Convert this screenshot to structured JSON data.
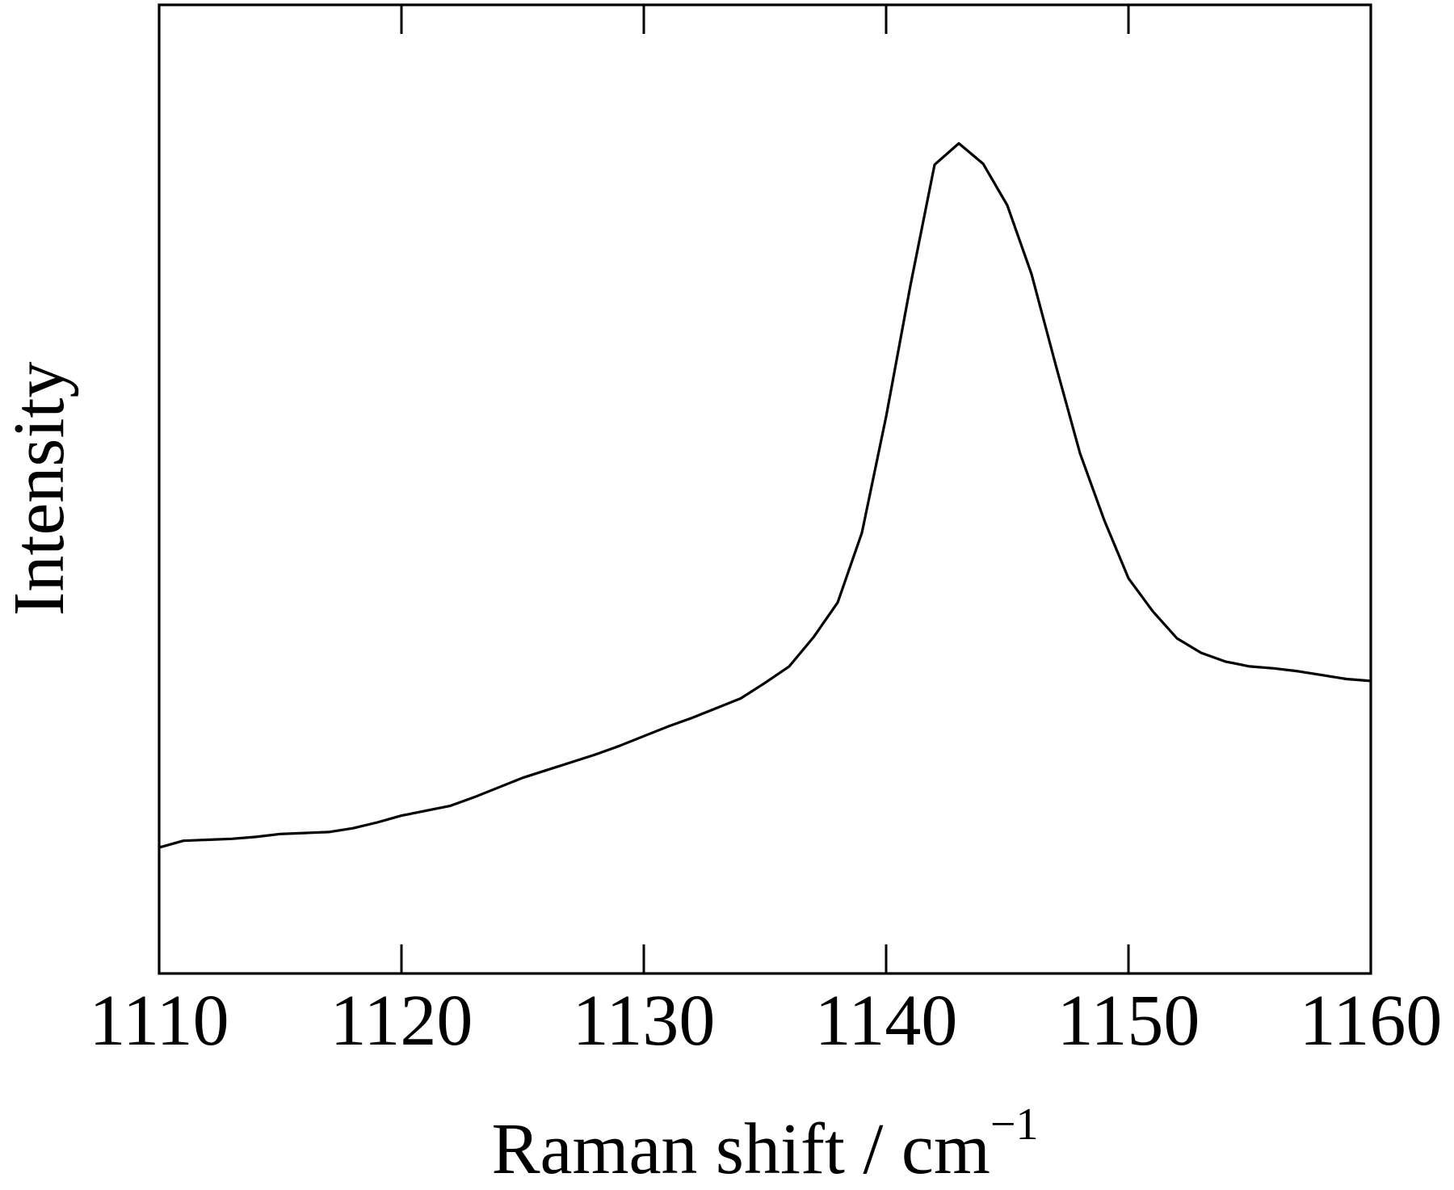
{
  "chart_data": {
    "type": "line",
    "title": "",
    "xlabel": "Raman shift / cm",
    "xlabel_unit_exponent": "−1",
    "ylabel": "Intensity",
    "xlim": [
      1110,
      1160
    ],
    "ylim": [
      0,
      1
    ],
    "x_ticks": [
      1110,
      1120,
      1130,
      1140,
      1150,
      1160
    ],
    "y_ticks_labeled": false,
    "grid": false,
    "legend": "none",
    "line_color": "#000000",
    "series": [
      {
        "x": [
          1110,
          1111,
          1112,
          1113,
          1114,
          1115,
          1116,
          1117,
          1118,
          1119,
          1120,
          1121,
          1122,
          1123,
          1124,
          1125,
          1126,
          1127,
          1128,
          1129,
          1130,
          1131,
          1132,
          1133,
          1134,
          1135,
          1136,
          1137,
          1138,
          1139,
          1140,
          1141,
          1142,
          1143,
          1144,
          1145,
          1146,
          1147,
          1148,
          1149,
          1150,
          1151,
          1152,
          1153,
          1154,
          1155,
          1156,
          1157,
          1158,
          1159,
          1160
        ],
        "y": [
          0.13,
          0.137,
          0.138,
          0.139,
          0.141,
          0.144,
          0.145,
          0.146,
          0.15,
          0.156,
          0.163,
          0.168,
          0.173,
          0.182,
          0.192,
          0.202,
          0.21,
          0.218,
          0.226,
          0.235,
          0.245,
          0.255,
          0.264,
          0.274,
          0.284,
          0.3,
          0.317,
          0.347,
          0.383,
          0.455,
          0.575,
          0.71,
          0.835,
          0.857,
          0.836,
          0.793,
          0.722,
          0.628,
          0.537,
          0.468,
          0.408,
          0.374,
          0.346,
          0.331,
          0.322,
          0.317,
          0.315,
          0.312,
          0.308,
          0.304,
          0.302
        ]
      }
    ]
  }
}
